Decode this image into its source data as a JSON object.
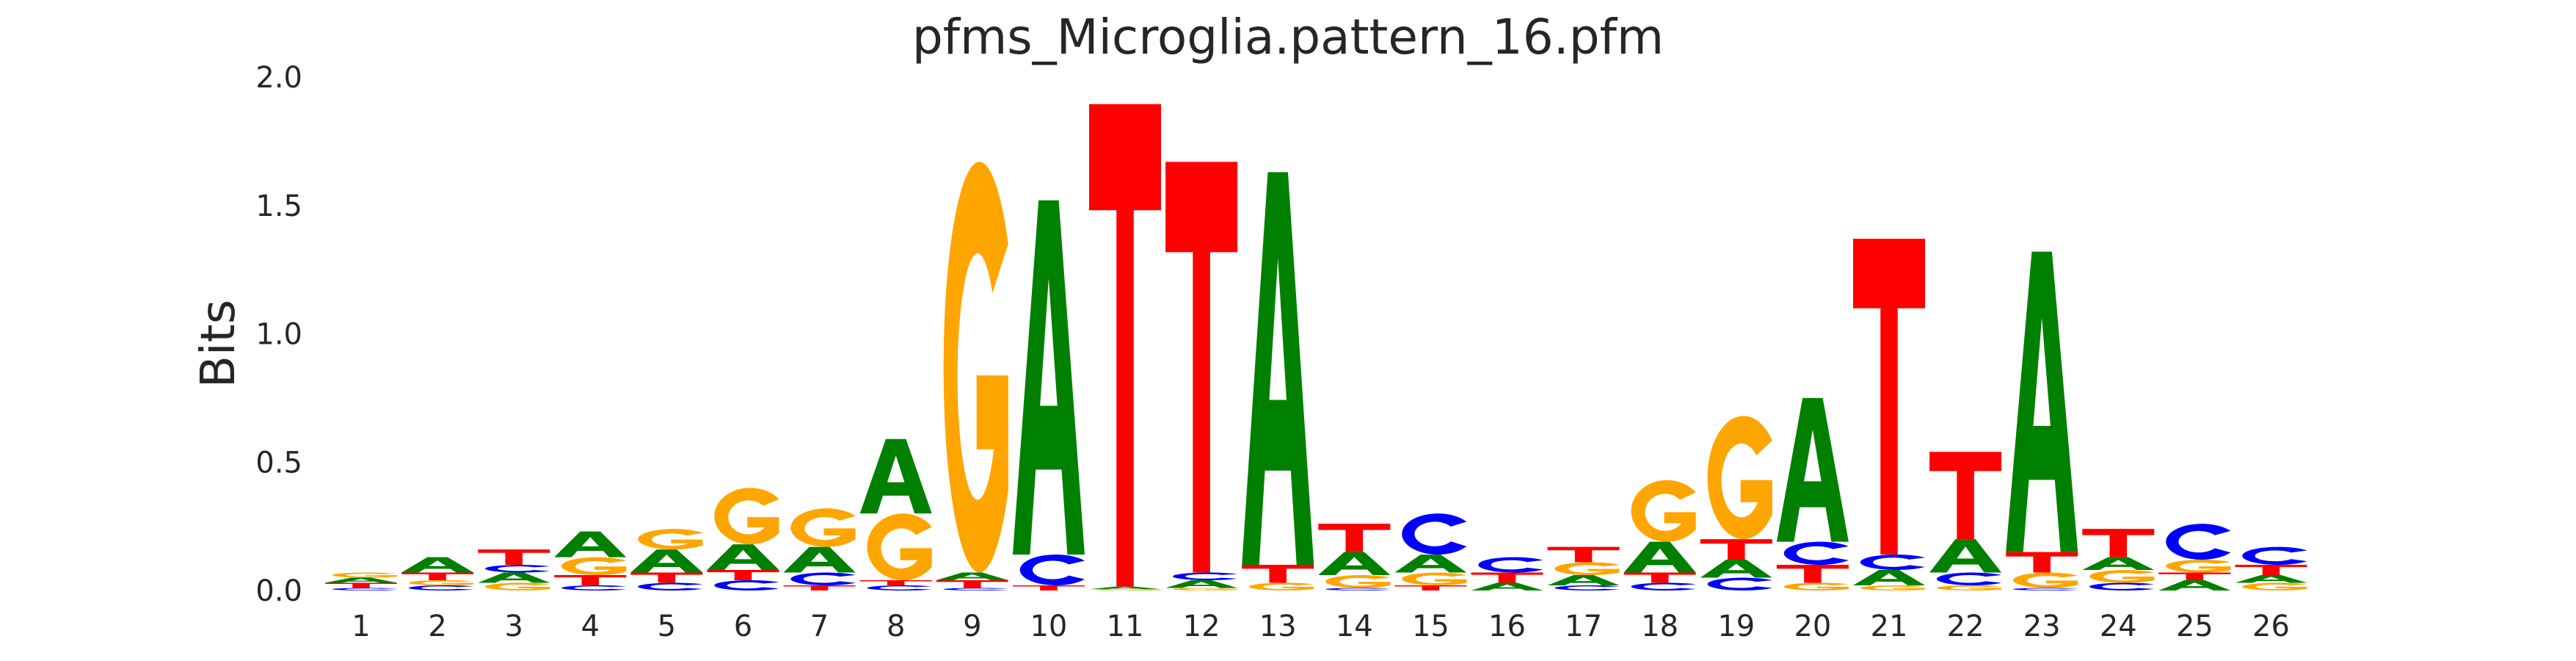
{
  "chart_data": {
    "type": "sequence-logo",
    "title": "pfms_Microglia.pattern_16.pfm",
    "xlabel": "",
    "ylabel": "Bits",
    "ylim": [
      0,
      2.0
    ],
    "yticks": [
      "0.0",
      "0.5",
      "1.0",
      "1.5",
      "2.0"
    ],
    "grid": false,
    "categories": [
      "1",
      "2",
      "3",
      "4",
      "5",
      "6",
      "7",
      "8",
      "9",
      "10",
      "11",
      "12",
      "13",
      "14",
      "15",
      "16",
      "17",
      "18",
      "19",
      "20",
      "21",
      "22",
      "23",
      "24",
      "25",
      "26"
    ],
    "letter_colors": {
      "A": "#008000",
      "C": "#0000ff",
      "G": "#ffa500",
      "T": "#ff0000"
    },
    "positions": [
      {
        "pos": 1,
        "letters": [
          [
            "C",
            0.01
          ],
          [
            "T",
            0.02
          ],
          [
            "A",
            0.02
          ],
          [
            "G",
            0.02
          ]
        ]
      },
      {
        "pos": 2,
        "letters": [
          [
            "C",
            0.02
          ],
          [
            "G",
            0.02
          ],
          [
            "T",
            0.03
          ],
          [
            "A",
            0.06
          ]
        ]
      },
      {
        "pos": 3,
        "letters": [
          [
            "G",
            0.03
          ],
          [
            "A",
            0.04
          ],
          [
            "C",
            0.03
          ],
          [
            "T",
            0.06
          ]
        ]
      },
      {
        "pos": 4,
        "letters": [
          [
            "C",
            0.02
          ],
          [
            "T",
            0.04
          ],
          [
            "G",
            0.07
          ],
          [
            "A",
            0.1
          ]
        ]
      },
      {
        "pos": 5,
        "letters": [
          [
            "C",
            0.03
          ],
          [
            "T",
            0.04
          ],
          [
            "A",
            0.09
          ],
          [
            "G",
            0.08
          ]
        ]
      },
      {
        "pos": 6,
        "letters": [
          [
            "C",
            0.04
          ],
          [
            "T",
            0.04
          ],
          [
            "A",
            0.1
          ],
          [
            "G",
            0.22
          ]
        ]
      },
      {
        "pos": 7,
        "letters": [
          [
            "T",
            0.02
          ],
          [
            "C",
            0.05
          ],
          [
            "A",
            0.1
          ],
          [
            "G",
            0.15
          ]
        ]
      },
      {
        "pos": 8,
        "letters": [
          [
            "C",
            0.02
          ],
          [
            "T",
            0.02
          ],
          [
            "G",
            0.26
          ],
          [
            "A",
            0.29
          ]
        ]
      },
      {
        "pos": 9,
        "letters": [
          [
            "C",
            0.01
          ],
          [
            "T",
            0.03
          ],
          [
            "A",
            0.03
          ],
          [
            "G",
            1.6
          ]
        ]
      },
      {
        "pos": 10,
        "letters": [
          [
            "T",
            0.02
          ],
          [
            "C",
            0.12
          ],
          [
            "A",
            1.38
          ]
        ]
      },
      {
        "pos": 11,
        "letters": [
          [
            "G",
            0.005
          ],
          [
            "A",
            0.01
          ],
          [
            "T",
            1.88
          ]
        ]
      },
      {
        "pos": 12,
        "letters": [
          [
            "G",
            0.01
          ],
          [
            "A",
            0.03
          ],
          [
            "C",
            0.03
          ],
          [
            "T",
            1.6
          ]
        ]
      },
      {
        "pos": 13,
        "letters": [
          [
            "G",
            0.03
          ],
          [
            "T",
            0.07
          ],
          [
            "A",
            1.53
          ]
        ]
      },
      {
        "pos": 14,
        "letters": [
          [
            "C",
            0.01
          ],
          [
            "G",
            0.05
          ],
          [
            "A",
            0.09
          ],
          [
            "T",
            0.11
          ]
        ]
      },
      {
        "pos": 15,
        "letters": [
          [
            "T",
            0.02
          ],
          [
            "G",
            0.05
          ],
          [
            "A",
            0.07
          ],
          [
            "C",
            0.16
          ]
        ]
      },
      {
        "pos": 16,
        "letters": [
          [
            "A",
            0.03
          ],
          [
            "T",
            0.04
          ],
          [
            "C",
            0.06
          ]
        ]
      },
      {
        "pos": 17,
        "letters": [
          [
            "C",
            0.02
          ],
          [
            "A",
            0.04
          ],
          [
            "G",
            0.05
          ],
          [
            "T",
            0.06
          ]
        ]
      },
      {
        "pos": 18,
        "letters": [
          [
            "C",
            0.03
          ],
          [
            "T",
            0.04
          ],
          [
            "A",
            0.12
          ],
          [
            "G",
            0.24
          ]
        ]
      },
      {
        "pos": 19,
        "letters": [
          [
            "C",
            0.05
          ],
          [
            "A",
            0.07
          ],
          [
            "T",
            0.08
          ],
          [
            "G",
            0.48
          ]
        ]
      },
      {
        "pos": 20,
        "letters": [
          [
            "G",
            0.03
          ],
          [
            "T",
            0.07
          ],
          [
            "C",
            0.09
          ],
          [
            "A",
            0.56
          ]
        ]
      },
      {
        "pos": 21,
        "letters": [
          [
            "G",
            0.02
          ],
          [
            "A",
            0.06
          ],
          [
            "C",
            0.06
          ],
          [
            "T",
            1.23
          ]
        ]
      },
      {
        "pos": 22,
        "letters": [
          [
            "G",
            0.02
          ],
          [
            "C",
            0.05
          ],
          [
            "A",
            0.13
          ],
          [
            "T",
            0.34
          ]
        ]
      },
      {
        "pos": 23,
        "letters": [
          [
            "C",
            0.01
          ],
          [
            "G",
            0.06
          ],
          [
            "T",
            0.08
          ],
          [
            "A",
            1.17
          ]
        ]
      },
      {
        "pos": 24,
        "letters": [
          [
            "C",
            0.03
          ],
          [
            "G",
            0.05
          ],
          [
            "A",
            0.05
          ],
          [
            "T",
            0.11
          ]
        ]
      },
      {
        "pos": 25,
        "letters": [
          [
            "A",
            0.04
          ],
          [
            "T",
            0.03
          ],
          [
            "G",
            0.05
          ],
          [
            "C",
            0.14
          ]
        ]
      },
      {
        "pos": 26,
        "letters": [
          [
            "G",
            0.03
          ],
          [
            "A",
            0.03
          ],
          [
            "T",
            0.04
          ],
          [
            "C",
            0.07
          ]
        ]
      }
    ]
  }
}
